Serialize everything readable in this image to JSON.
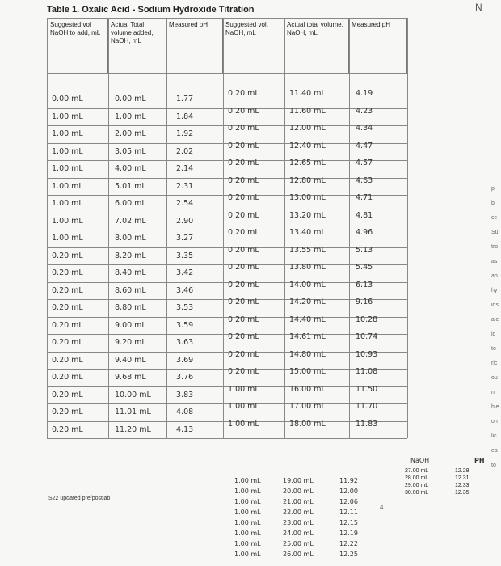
{
  "title": "Table 1. Oxalic Acid - Sodium Hydroxide Titration",
  "page_mark": "N",
  "headers": [
    "Suggested vol NaOH to add, mL",
    "Actual Total volume added, NaOH, mL",
    "Measured pH",
    "Suggested vol, NaOH, mL",
    "Actual total volume, NaOH, mL",
    "Measured pH"
  ],
  "left_rows": [
    [
      "0.00 mL",
      "0.00 mL",
      "1.77"
    ],
    [
      "1.00 mL",
      "1.00 mL",
      "1.84"
    ],
    [
      "1.00 mL",
      "2.00 mL",
      "1.92"
    ],
    [
      "1.00 mL",
      "3.05 mL",
      "2.02"
    ],
    [
      "1.00 mL",
      "4.00 mL",
      "2.14"
    ],
    [
      "1.00 mL",
      "5.01 mL",
      "2.31"
    ],
    [
      "1.00 mL",
      "6.00 mL",
      "2.54"
    ],
    [
      "1.00 mL",
      "7.02 mL",
      "2.90"
    ],
    [
      "1.00 mL",
      "8.00 mL",
      "3.27"
    ],
    [
      "0.20 mL",
      "8.20 mL",
      "3.35"
    ],
    [
      "0.20 mL",
      "8.40 mL",
      "3.42"
    ],
    [
      "0.20 mL",
      "8.60 mL",
      "3.46"
    ],
    [
      "0.20 mL",
      "8.80 mL",
      "3.53"
    ],
    [
      "0.20 mL",
      "9.00 mL",
      "3.59"
    ],
    [
      "0.20 mL",
      "9.20 mL",
      "3.63"
    ],
    [
      "0.20 mL",
      "9.40 mL",
      "3.69"
    ],
    [
      "0.20 mL",
      "9.68 mL",
      "3.76"
    ],
    [
      "0.20 mL",
      "10.00 mL",
      "3.83"
    ],
    [
      "0.20 mL",
      "11.01 mL",
      "4.08"
    ],
    [
      "0.20 mL",
      "11.20 mL",
      "4.13"
    ]
  ],
  "right_rows": [
    [
      "0.20 mL",
      "11.40 mL",
      "4.19"
    ],
    [
      "0.20 mL",
      "11.60 mL",
      "4.23"
    ],
    [
      "0.20 mL",
      "12.00 mL",
      "4.34"
    ],
    [
      "0.20 mL",
      "12.40 mL",
      "4.47"
    ],
    [
      "0.20 mL",
      "12.65 mL",
      "4.57"
    ],
    [
      "0.20 mL",
      "12.80 mL",
      "4.63"
    ],
    [
      "0.20 mL",
      "13.00 mL",
      "4.71"
    ],
    [
      "0.20 mL",
      "13.20 mL",
      "4.81"
    ],
    [
      "0.20 mL",
      "13.40 mL",
      "4.96"
    ],
    [
      "0.20 mL",
      "13.55 mL",
      "5.13"
    ],
    [
      "0.20 mL",
      "13.80 mL",
      "5.45"
    ],
    [
      "0.20 mL",
      "14.00 mL",
      "6.13"
    ],
    [
      "0.20 mL",
      "14.20 mL",
      "9.16"
    ],
    [
      "0.20 mL",
      "14.40 mL",
      "10.28"
    ],
    [
      "0.20 mL",
      "14.61 mL",
      "10.74"
    ],
    [
      "0.20 mL",
      "14.80 mL",
      "10.93"
    ],
    [
      "0.20 mL",
      "15.00 mL",
      "11.08"
    ],
    [
      "1.00 mL",
      "16.00 mL",
      "11.50"
    ],
    [
      "1.00 mL",
      "17.00 mL",
      "11.70"
    ],
    [
      "1.00 mL",
      "18.00 mL",
      "11.83"
    ]
  ],
  "extra_rows": [
    [
      "1.00 mL",
      "19.00 mL",
      "11.92"
    ],
    [
      "1.00 mL",
      "20.00 mL",
      "12.00"
    ],
    [
      "1.00 mL",
      "21.00 mL",
      "12.06"
    ],
    [
      "1.00 mL",
      "22.00 mL",
      "12.11"
    ],
    [
      "1.00 mL",
      "23.00 mL",
      "12.15"
    ],
    [
      "1.00 mL",
      "24.00 mL",
      "12.19"
    ],
    [
      "1.00 mL",
      "25.00 mL",
      "12.22"
    ],
    [
      "1.00 mL",
      "26.00 mL",
      "12.25"
    ]
  ],
  "inset": {
    "header_left": "NaOH",
    "header_right": "PH",
    "rows": [
      [
        "27.00 mL",
        "12.28"
      ],
      [
        "28.00 mL",
        "12.31"
      ],
      [
        "29.00 mL",
        "12.33"
      ],
      [
        "30.00 mL",
        "12.35"
      ]
    ],
    "side_number": "4"
  },
  "footer": "S22 updated pre/postlab",
  "cropped_right_text": [
    "p",
    "b",
    "cc",
    "Su",
    "tro",
    "as",
    "ab",
    "hy",
    "ids",
    "ale",
    "ic",
    "to",
    "ric",
    "ou",
    "ni",
    "hle",
    "on",
    "lic",
    "ea",
    "to"
  ]
}
